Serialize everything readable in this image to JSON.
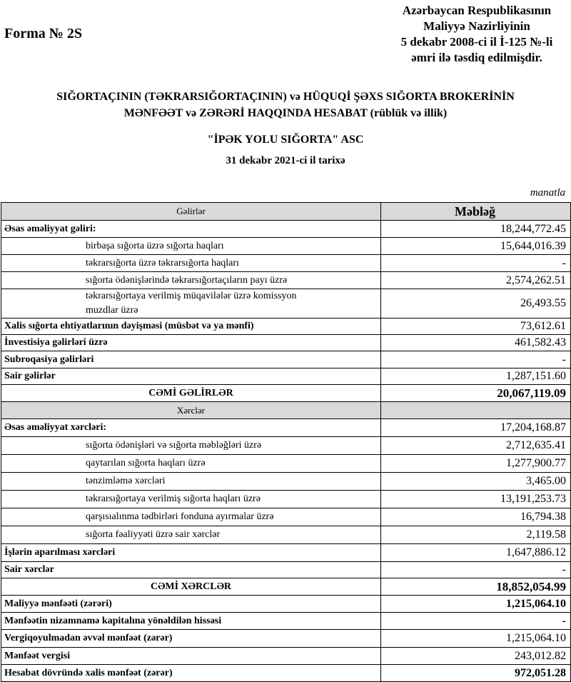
{
  "header": {
    "form": "Forma № 2S",
    "approval": [
      "Azərbaycan Respublikasının",
      "Maliyyə Nazirliyinin",
      "5 dekabr 2008-ci il İ-125 №-li",
      "əmri ilə təsdiq edilmişdir."
    ],
    "title": [
      "SIĞORTAÇININ (TƏKRARSIĞORTAÇININ) və HÜQUQİ ŞƏXS SIĞORTA BROKERİNİN",
      "MƏNFƏƏT və ZƏRƏRİ HAQQINDA HESABAT (rüblük və illik)"
    ],
    "company": "\"İPƏK YOLU SIĞORTA\" ASC",
    "date": "31 dekabr 2021-ci il tarixə",
    "unit": "manatla"
  },
  "table": {
    "rows": [
      [
        "Gəlirlər",
        "Məbləğ"
      ],
      [
        "Əsas əməliyyat gəliri:",
        "18,244,772.45"
      ],
      [
        "birbaşa sığorta üzrə sığorta haqları",
        "15,644,016.39"
      ],
      [
        "təkrarsığorta üzrə təkrarsığorta haqları",
        "-"
      ],
      [
        "sığorta ödənişlərində təkrarsığortaçıların payı üzrə",
        "2,574,262.51"
      ],
      [
        "təkrarsığortaya verilmiş müqavilələr üzrə komissyon muzdlar üzrə",
        "26,493.55"
      ],
      [
        "Xalis sığorta ehtiyatlarının dəyişməsi (müsbət və ya mənfi)",
        "73,612.61"
      ],
      [
        "İnvestisiya gəlirləri üzrə",
        "461,582.43"
      ],
      [
        "Subroqasiya gəlirləri",
        "-"
      ],
      [
        "Sair gəlirlər",
        "1,287,151.60"
      ],
      [
        "CƏMİ  GƏLİRLƏR",
        "20,067,119.09"
      ],
      [
        "Xərclər"
      ],
      [
        "Əsas əməliyyat xərcləri:",
        "17,204,168.87"
      ],
      [
        "sığorta ödənişləri və sığorta məbləğləri üzrə",
        "2,712,635.41"
      ],
      [
        "qaytarılan sığorta haqları üzrə",
        "1,277,900.77"
      ],
      [
        "tənzimləmə xərcləri",
        "3,465.00"
      ],
      [
        "təkrarsığortaya verilmiş sığorta haqları üzrə",
        "13,191,253.73"
      ],
      [
        "qarşısıalınma tədbirləri fonduna ayırmalar üzrə",
        "16,794.38"
      ],
      [
        "sığorta fəaliyyəti üzrə sair xərclər",
        "2,119.58"
      ],
      [
        "İşlərin aparılması xərcləri",
        "1,647,886.12"
      ],
      [
        "Sair xərclər",
        "-"
      ],
      [
        "CƏMİ  XƏRCLƏR",
        "18,852,054.99"
      ],
      [
        "Maliyyə mənfəəti (zərəri)",
        "1,215,064.10"
      ],
      [
        "Mənfəətin nizamnamə kapitalına yönəldilən hissəsi",
        "-"
      ],
      [
        "Vergiqoyulmadan əvvəl mənfəət (zərər)",
        "1,215,064.10"
      ],
      [
        "Mənfəət vergisi",
        "243,012.82"
      ],
      [
        "Hesabat dövründə xalis mənfəət (zərər)",
        "972,051.28"
      ]
    ]
  }
}
